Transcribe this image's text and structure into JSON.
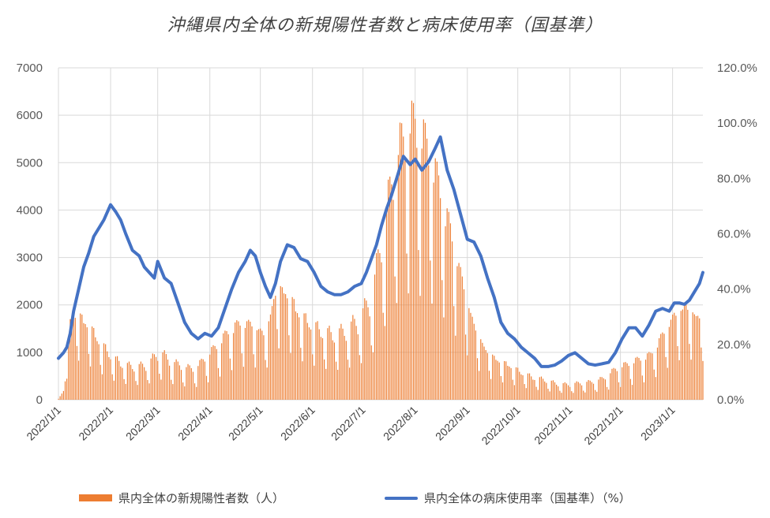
{
  "chart_data": {
    "type": "bar+line",
    "title": "沖縄県内全体の新規陽性者数と病床使用率（国基準）",
    "x_ticks": [
      "2022/1/1",
      "2022/2/1",
      "2022/3/1",
      "2022/4/1",
      "2022/5/1",
      "2022/6/1",
      "2022/7/1",
      "2022/8/1",
      "2022/9/1",
      "2022/10/1",
      "2022/11/1",
      "2022/12/1",
      "2023/1/1"
    ],
    "y_left": {
      "ticks": [
        "0",
        "1000",
        "2000",
        "3000",
        "4000",
        "5000",
        "6000",
        "7000"
      ],
      "range": [
        0,
        7000
      ]
    },
    "y_right": {
      "ticks": [
        "0.0%",
        "20.0%",
        "40.0%",
        "60.0%",
        "80.0%",
        "100.0%",
        "120.0%"
      ],
      "range": [
        0,
        120
      ]
    },
    "grid": true,
    "legend_position": "bottom",
    "series": [
      {
        "name": "県内全体の新規陽性者数（人）",
        "type": "bar",
        "axis": "left",
        "color": "#ED7D31",
        "weekly_level_points": [
          [
            "2022-01-01",
            50
          ],
          [
            "2022-01-05",
            600
          ],
          [
            "2022-01-08",
            1600
          ],
          [
            "2022-01-12",
            1750
          ],
          [
            "2022-01-19",
            1500
          ],
          [
            "2022-01-26",
            1150
          ],
          [
            "2022-02-02",
            850
          ],
          [
            "2022-02-09",
            700
          ],
          [
            "2022-02-16",
            650
          ],
          [
            "2022-02-23",
            700
          ],
          [
            "2022-03-02",
            950
          ],
          [
            "2022-03-09",
            750
          ],
          [
            "2022-03-16",
            650
          ],
          [
            "2022-03-23",
            600
          ],
          [
            "2022-03-30",
            850
          ],
          [
            "2022-04-06",
            1100
          ],
          [
            "2022-04-13",
            1400
          ],
          [
            "2022-04-20",
            1550
          ],
          [
            "2022-04-27",
            1500
          ],
          [
            "2022-05-04",
            1300
          ],
          [
            "2022-05-11",
            2300
          ],
          [
            "2022-05-18",
            2100
          ],
          [
            "2022-05-25",
            1700
          ],
          [
            "2022-06-01",
            1500
          ],
          [
            "2022-06-08",
            1350
          ],
          [
            "2022-06-15",
            1300
          ],
          [
            "2022-06-22",
            1400
          ],
          [
            "2022-06-29",
            1600
          ],
          [
            "2022-07-06",
            2000
          ],
          [
            "2022-07-13",
            3300
          ],
          [
            "2022-07-20",
            4600
          ],
          [
            "2022-07-27",
            5300
          ],
          [
            "2022-08-01",
            5400
          ],
          [
            "2022-08-08",
            5000
          ],
          [
            "2022-08-15",
            4300
          ],
          [
            "2022-08-22",
            3400
          ],
          [
            "2022-08-29",
            2400
          ],
          [
            "2022-09-05",
            1500
          ],
          [
            "2022-09-12",
            1000
          ],
          [
            "2022-09-19",
            800
          ],
          [
            "2022-09-26",
            700
          ],
          [
            "2022-10-03",
            550
          ],
          [
            "2022-10-10",
            450
          ],
          [
            "2022-10-17",
            400
          ],
          [
            "2022-10-24",
            320
          ],
          [
            "2022-10-31",
            300
          ],
          [
            "2022-11-07",
            330
          ],
          [
            "2022-11-14",
            350
          ],
          [
            "2022-11-21",
            420
          ],
          [
            "2022-11-28",
            600
          ],
          [
            "2022-12-05",
            700
          ],
          [
            "2022-12-12",
            800
          ],
          [
            "2022-12-19",
            900
          ],
          [
            "2022-12-26",
            1300
          ],
          [
            "2023-01-02",
            1700
          ],
          [
            "2023-01-09",
            1900
          ],
          [
            "2023-01-14",
            1700
          ]
        ]
      },
      {
        "name": "県内全体の病床使用率（国基準）（%）",
        "type": "line",
        "axis": "right",
        "color": "#4472C4",
        "points": [
          [
            "2022-01-01",
            15
          ],
          [
            "2022-01-04",
            17
          ],
          [
            "2022-01-06",
            19
          ],
          [
            "2022-01-08",
            24
          ],
          [
            "2022-01-10",
            32
          ],
          [
            "2022-01-13",
            40
          ],
          [
            "2022-01-16",
            48
          ],
          [
            "2022-01-19",
            53
          ],
          [
            "2022-01-22",
            59
          ],
          [
            "2022-01-25",
            62
          ],
          [
            "2022-01-28",
            65
          ],
          [
            "2022-02-01",
            70.5
          ],
          [
            "2022-02-04",
            68
          ],
          [
            "2022-02-07",
            65
          ],
          [
            "2022-02-10",
            60
          ],
          [
            "2022-02-14",
            54
          ],
          [
            "2022-02-18",
            52
          ],
          [
            "2022-02-21",
            48
          ],
          [
            "2022-02-24",
            46
          ],
          [
            "2022-02-27",
            44
          ],
          [
            "2022-03-01",
            50
          ],
          [
            "2022-03-05",
            44
          ],
          [
            "2022-03-09",
            42
          ],
          [
            "2022-03-13",
            35
          ],
          [
            "2022-03-17",
            28
          ],
          [
            "2022-03-21",
            24
          ],
          [
            "2022-03-25",
            22
          ],
          [
            "2022-03-29",
            24
          ],
          [
            "2022-04-02",
            23
          ],
          [
            "2022-04-06",
            26
          ],
          [
            "2022-04-10",
            33
          ],
          [
            "2022-04-14",
            40
          ],
          [
            "2022-04-18",
            46
          ],
          [
            "2022-04-22",
            50
          ],
          [
            "2022-04-25",
            54
          ],
          [
            "2022-04-28",
            52
          ],
          [
            "2022-05-01",
            46
          ],
          [
            "2022-05-04",
            41
          ],
          [
            "2022-05-07",
            37
          ],
          [
            "2022-05-10",
            42
          ],
          [
            "2022-05-13",
            50
          ],
          [
            "2022-05-17",
            56
          ],
          [
            "2022-05-21",
            55
          ],
          [
            "2022-05-25",
            51
          ],
          [
            "2022-05-29",
            50
          ],
          [
            "2022-06-02",
            46
          ],
          [
            "2022-06-06",
            41
          ],
          [
            "2022-06-10",
            39
          ],
          [
            "2022-06-14",
            38
          ],
          [
            "2022-06-18",
            38
          ],
          [
            "2022-06-22",
            39
          ],
          [
            "2022-06-26",
            41
          ],
          [
            "2022-06-30",
            42
          ],
          [
            "2022-07-03",
            46
          ],
          [
            "2022-07-06",
            51
          ],
          [
            "2022-07-09",
            56
          ],
          [
            "2022-07-12",
            63
          ],
          [
            "2022-07-15",
            69
          ],
          [
            "2022-07-18",
            74
          ],
          [
            "2022-07-22",
            82
          ],
          [
            "2022-07-25",
            88
          ],
          [
            "2022-07-29",
            85
          ],
          [
            "2022-08-01",
            87
          ],
          [
            "2022-08-05",
            83
          ],
          [
            "2022-08-09",
            86
          ],
          [
            "2022-08-13",
            91
          ],
          [
            "2022-08-16",
            95
          ],
          [
            "2022-08-20",
            83
          ],
          [
            "2022-08-24",
            76
          ],
          [
            "2022-08-28",
            67
          ],
          [
            "2022-09-01",
            58
          ],
          [
            "2022-09-05",
            57
          ],
          [
            "2022-09-09",
            52
          ],
          [
            "2022-09-13",
            44
          ],
          [
            "2022-09-17",
            37
          ],
          [
            "2022-09-21",
            28
          ],
          [
            "2022-09-25",
            24
          ],
          [
            "2022-09-29",
            22
          ],
          [
            "2022-10-03",
            19
          ],
          [
            "2022-10-07",
            17
          ],
          [
            "2022-10-11",
            15
          ],
          [
            "2022-10-15",
            12
          ],
          [
            "2022-10-19",
            12
          ],
          [
            "2022-10-23",
            12.5
          ],
          [
            "2022-10-27",
            14
          ],
          [
            "2022-10-31",
            16
          ],
          [
            "2022-11-04",
            17
          ],
          [
            "2022-11-08",
            15
          ],
          [
            "2022-11-12",
            13
          ],
          [
            "2022-11-16",
            12.5
          ],
          [
            "2022-11-20",
            13
          ],
          [
            "2022-11-24",
            13.5
          ],
          [
            "2022-11-28",
            17
          ],
          [
            "2022-12-02",
            22
          ],
          [
            "2022-12-06",
            26
          ],
          [
            "2022-12-10",
            26
          ],
          [
            "2022-12-14",
            23
          ],
          [
            "2022-12-18",
            27
          ],
          [
            "2022-12-22",
            32
          ],
          [
            "2022-12-26",
            33
          ],
          [
            "2022-12-30",
            32
          ],
          [
            "2023-01-02",
            35
          ],
          [
            "2023-01-05",
            35
          ],
          [
            "2023-01-08",
            34.5
          ],
          [
            "2023-01-11",
            36
          ],
          [
            "2023-01-14",
            39
          ],
          [
            "2023-01-17",
            42
          ],
          [
            "2023-01-19",
            46
          ]
        ]
      }
    ]
  }
}
